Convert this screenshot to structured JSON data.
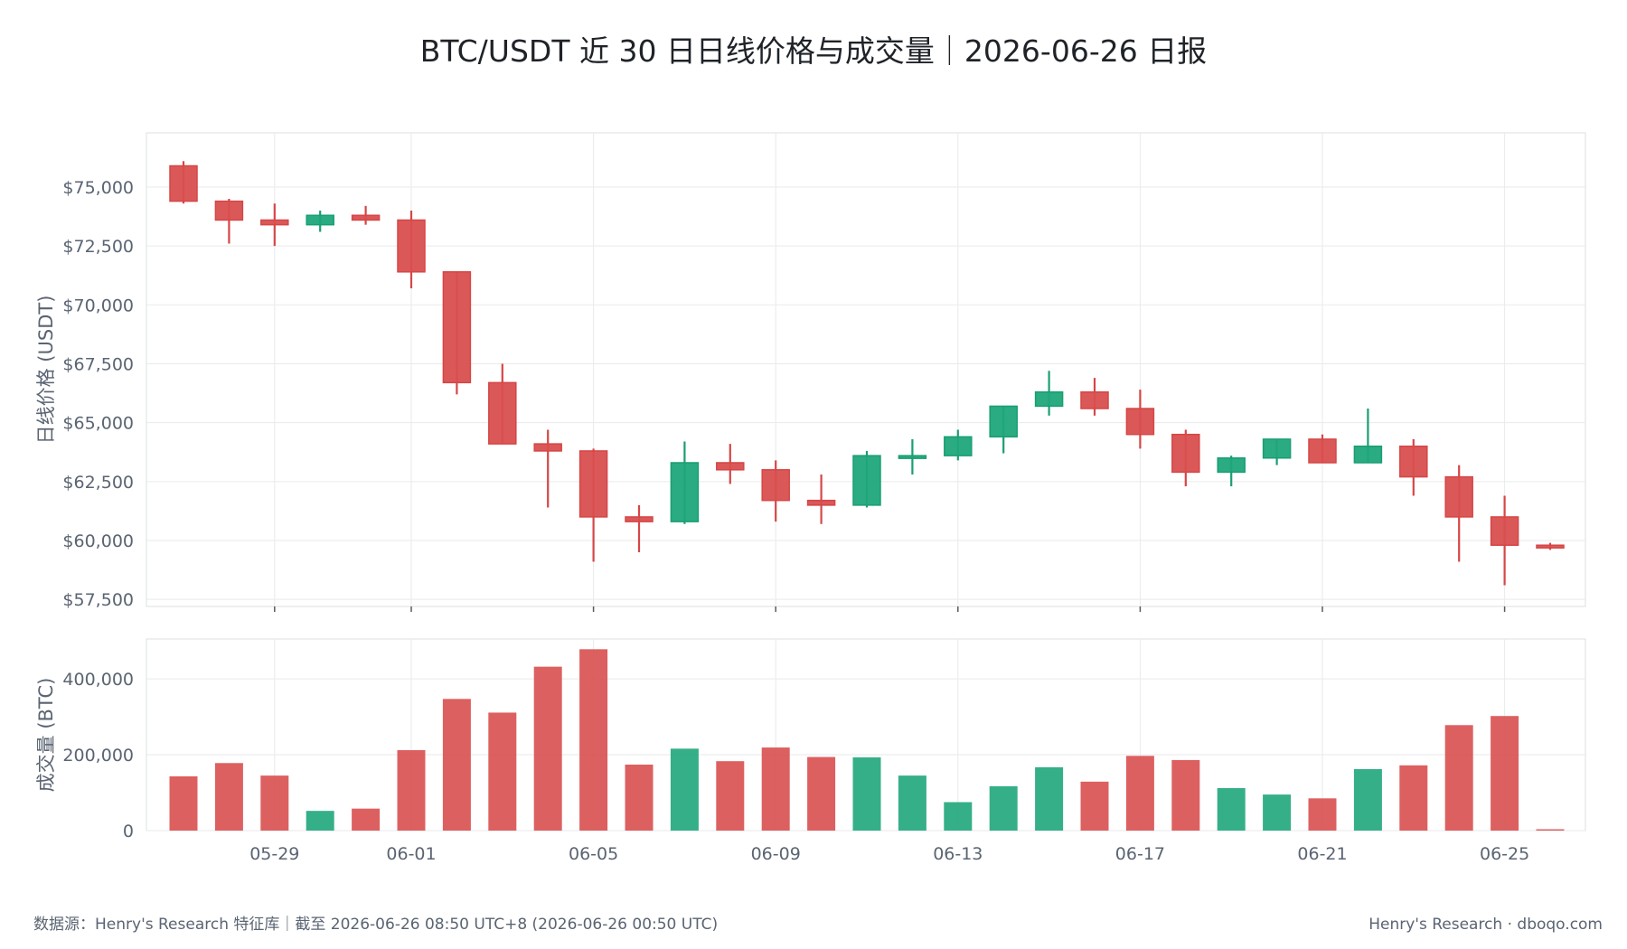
{
  "title": "BTC/USDT 近 30 日日线价格与成交量｜2026-06-26 日报",
  "footer": {
    "left": "数据源：Henry's Research 特征库｜截至 2026-06-26 08:50 UTC+8 (2026-06-26 00:50 UTC)",
    "right": "Henry's Research · dboqo.com"
  },
  "colors": {
    "up": "#1a9e74",
    "down": "#d64646",
    "up_fill": "#1fa67a",
    "down_fill": "#d94f4f",
    "grid": "#e9eaec",
    "frame": "#dddfe3"
  },
  "chart_data": [
    {
      "type": "candlestick",
      "ylabel": "日线价格 (USDT)",
      "y_ticks": [
        "$57,500",
        "$60,000",
        "$62,500",
        "$65,000",
        "$67,500",
        "$70,000",
        "$72,500",
        "$75,000"
      ],
      "y_tick_values": [
        57500,
        60000,
        62500,
        65000,
        67500,
        70000,
        72500,
        75000
      ],
      "ylim": [
        57200,
        77300
      ],
      "x_ticks": [
        "05-29",
        "06-01",
        "06-05",
        "06-09",
        "06-13",
        "06-17",
        "06-21",
        "06-25"
      ],
      "x_tick_dates": [
        "05-29",
        "06-01",
        "06-05",
        "06-09",
        "06-13",
        "06-17",
        "06-21",
        "06-25"
      ],
      "candles": [
        {
          "date": "05-27",
          "open": 75900,
          "high": 76100,
          "low": 74300,
          "close": 74400
        },
        {
          "date": "05-28",
          "open": 74400,
          "high": 74500,
          "low": 72600,
          "close": 73600
        },
        {
          "date": "05-29",
          "open": 73600,
          "high": 74300,
          "low": 72500,
          "close": 73400
        },
        {
          "date": "05-30",
          "open": 73400,
          "high": 74000,
          "low": 73100,
          "close": 73800
        },
        {
          "date": "05-31",
          "open": 73800,
          "high": 74200,
          "low": 73400,
          "close": 73600
        },
        {
          "date": "06-01",
          "open": 73600,
          "high": 74000,
          "low": 70700,
          "close": 71400
        },
        {
          "date": "06-02",
          "open": 71400,
          "high": 71400,
          "low": 66200,
          "close": 66700
        },
        {
          "date": "06-03",
          "open": 66700,
          "high": 67500,
          "low": 64100,
          "close": 64100
        },
        {
          "date": "06-04",
          "open": 64100,
          "high": 64700,
          "low": 61400,
          "close": 63800
        },
        {
          "date": "06-05",
          "open": 63800,
          "high": 63900,
          "low": 59100,
          "close": 61000
        },
        {
          "date": "06-06",
          "open": 61000,
          "high": 61500,
          "low": 59500,
          "close": 60800
        },
        {
          "date": "06-07",
          "open": 60800,
          "high": 64200,
          "low": 60700,
          "close": 63300
        },
        {
          "date": "06-08",
          "open": 63300,
          "high": 64100,
          "low": 62400,
          "close": 63000
        },
        {
          "date": "06-09",
          "open": 63000,
          "high": 63400,
          "low": 60800,
          "close": 61700
        },
        {
          "date": "06-10",
          "open": 61700,
          "high": 62800,
          "low": 60700,
          "close": 61500
        },
        {
          "date": "06-11",
          "open": 61500,
          "high": 63800,
          "low": 61400,
          "close": 63600
        },
        {
          "date": "06-12",
          "open": 63600,
          "high": 64300,
          "low": 62800,
          "close": 63600
        },
        {
          "date": "06-13",
          "open": 63600,
          "high": 64700,
          "low": 63400,
          "close": 64400
        },
        {
          "date": "06-14",
          "open": 64400,
          "high": 65700,
          "low": 63700,
          "close": 65700
        },
        {
          "date": "06-15",
          "open": 65700,
          "high": 67200,
          "low": 65300,
          "close": 66300
        },
        {
          "date": "06-16",
          "open": 66300,
          "high": 66900,
          "low": 65300,
          "close": 65600
        },
        {
          "date": "06-17",
          "open": 65600,
          "high": 66400,
          "low": 63900,
          "close": 64500
        },
        {
          "date": "06-18",
          "open": 64500,
          "high": 64700,
          "low": 62300,
          "close": 62900
        },
        {
          "date": "06-19",
          "open": 62900,
          "high": 63600,
          "low": 62300,
          "close": 63500
        },
        {
          "date": "06-20",
          "open": 63500,
          "high": 64300,
          "low": 63200,
          "close": 64300
        },
        {
          "date": "06-21",
          "open": 64300,
          "high": 64500,
          "low": 63300,
          "close": 63300
        },
        {
          "date": "06-22",
          "open": 63300,
          "high": 65600,
          "low": 63300,
          "close": 64000
        },
        {
          "date": "06-23",
          "open": 64000,
          "high": 64300,
          "low": 61900,
          "close": 62700
        },
        {
          "date": "06-24",
          "open": 62700,
          "high": 63200,
          "low": 59100,
          "close": 61000
        },
        {
          "date": "06-25",
          "open": 61000,
          "high": 61900,
          "low": 58100,
          "close": 59800
        },
        {
          "date": "06-26",
          "open": 59800,
          "high": 59900,
          "low": 59600,
          "close": 59700
        }
      ]
    },
    {
      "type": "bar",
      "ylabel": "成交量 (BTC)",
      "y_ticks": [
        "0",
        "200,000",
        "400,000"
      ],
      "y_tick_values": [
        0,
        200000,
        400000
      ],
      "ylim": [
        0,
        505000
      ],
      "categories": [
        "05-27",
        "05-28",
        "05-29",
        "05-30",
        "05-31",
        "06-01",
        "06-02",
        "06-03",
        "06-04",
        "06-05",
        "06-06",
        "06-07",
        "06-08",
        "06-09",
        "06-10",
        "06-11",
        "06-12",
        "06-13",
        "06-14",
        "06-15",
        "06-16",
        "06-17",
        "06-18",
        "06-19",
        "06-20",
        "06-21",
        "06-22",
        "06-23",
        "06-24",
        "06-25",
        "06-26"
      ],
      "values": [
        143000,
        178000,
        145000,
        52000,
        58000,
        212000,
        347000,
        311000,
        432000,
        478000,
        174000,
        216000,
        183000,
        219000,
        194000,
        193000,
        145000,
        75000,
        117000,
        167000,
        129000,
        197000,
        186000,
        112000,
        95000,
        85000,
        162000,
        172000,
        278000,
        302000,
        3000
      ]
    }
  ]
}
